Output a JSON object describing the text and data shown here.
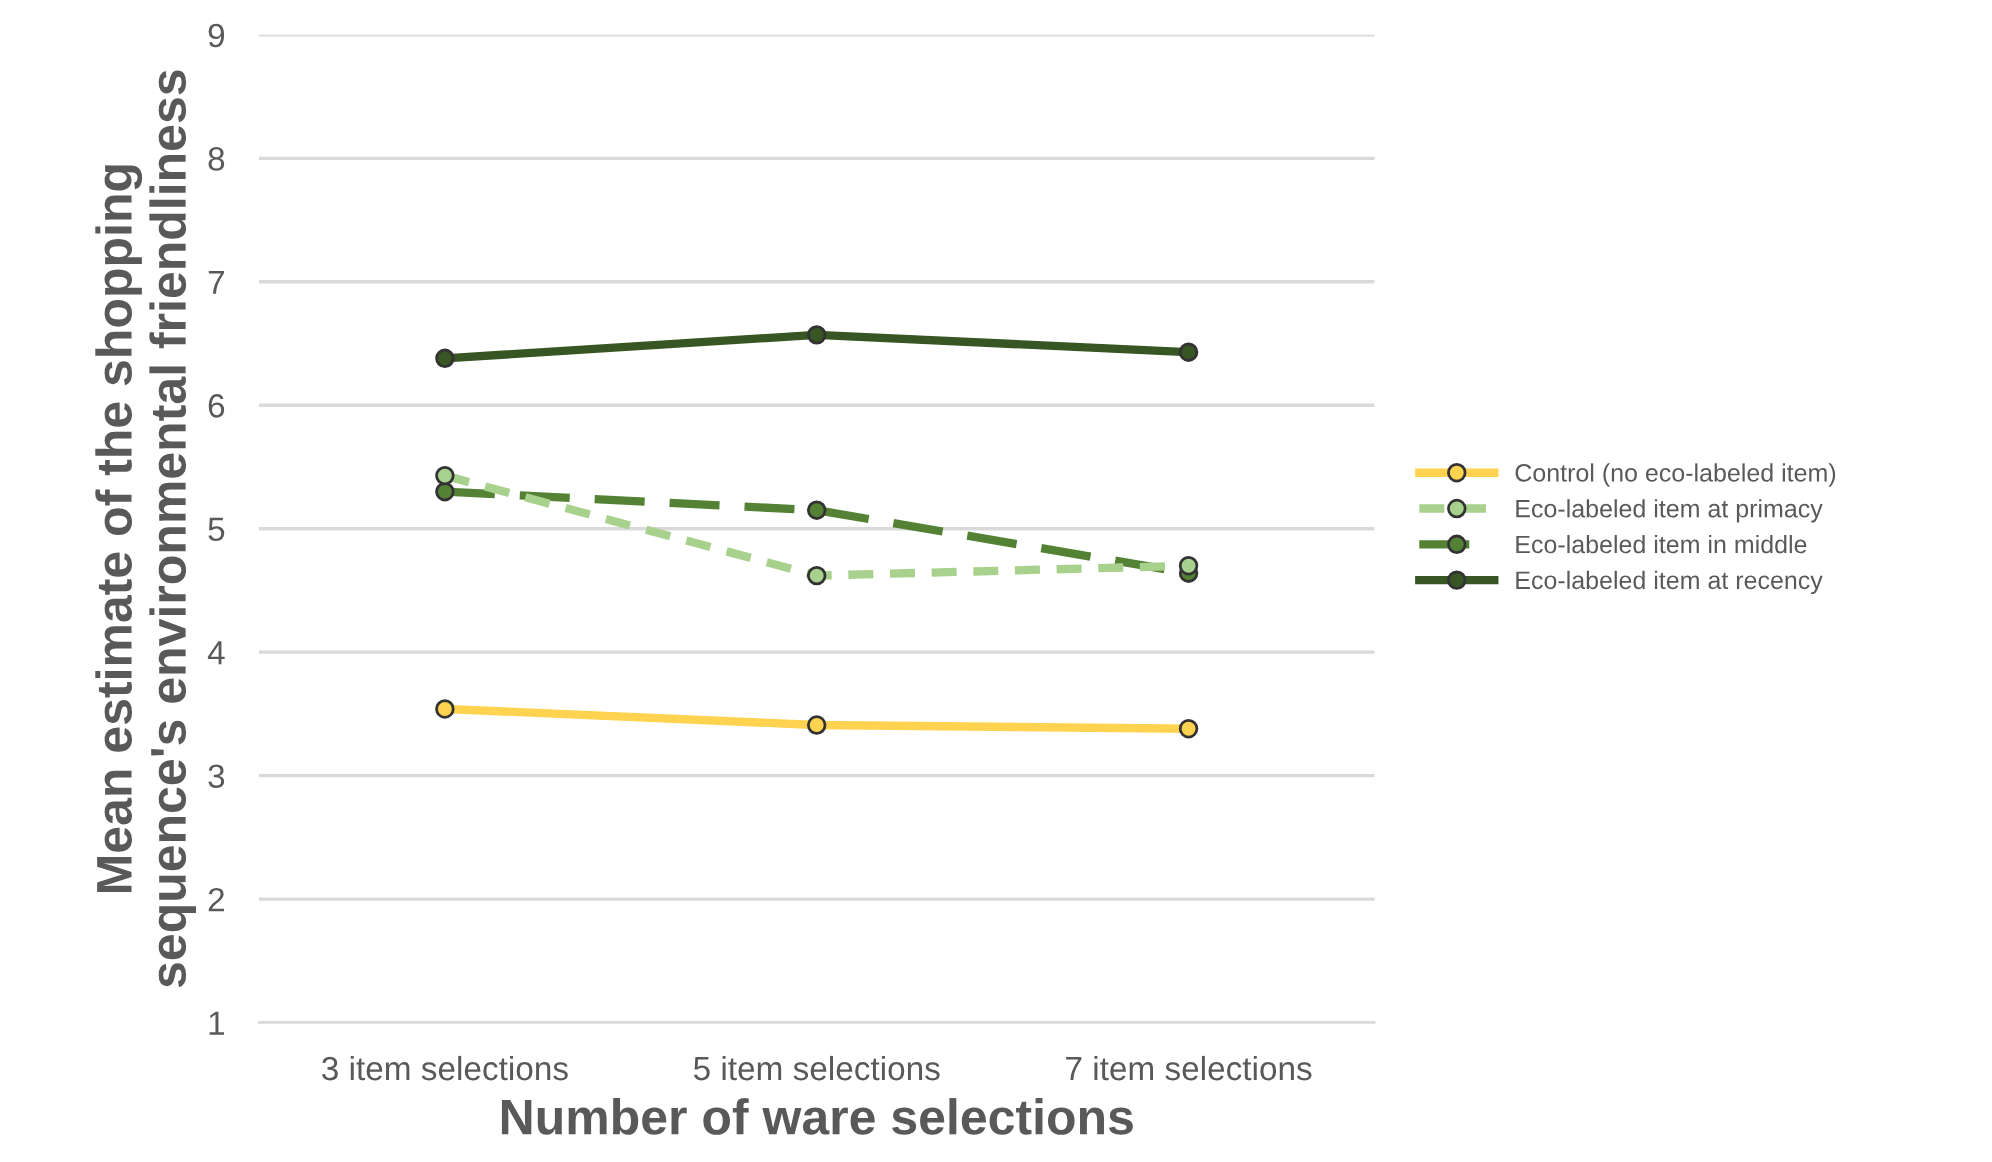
{
  "chart_data": {
    "type": "line",
    "xlabel": "Number of ware selections",
    "ylabel": "Mean estimate of the shopping\nsequence's environmental friendliness",
    "categories": [
      "3 item selections",
      "5 item selections",
      "7 item selections"
    ],
    "series": [
      {
        "name": "Control (no eco-labeled item)",
        "color": "#ffd34f",
        "line_style": "solid",
        "values": [
          3.54,
          3.41,
          3.38
        ]
      },
      {
        "name": "Eco-labeled item at primacy",
        "color": "#a9d18e",
        "line_style": "dotted",
        "values": [
          5.43,
          4.62,
          4.7
        ]
      },
      {
        "name": "Eco-labeled item in middle",
        "color": "#548235",
        "line_style": "dashed",
        "values": [
          5.3,
          5.15,
          4.64
        ]
      },
      {
        "name": "Eco-labeled item at recency",
        "color": "#375623",
        "line_style": "solid",
        "values": [
          6.38,
          6.57,
          6.43
        ]
      }
    ],
    "ylim": [
      1,
      9
    ],
    "yticks": [
      1,
      2,
      3,
      4,
      5,
      6,
      7,
      8,
      9
    ],
    "grid": "y",
    "legend": "right",
    "marker": "circle"
  }
}
